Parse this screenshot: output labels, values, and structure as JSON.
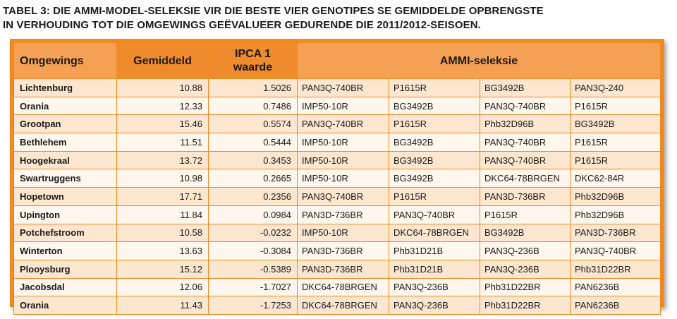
{
  "caption": {
    "line1": "TABEL  3:  DIE AMMI-MODEL-SELEKSIE VIR DIE BESTE VIER GENOTIPES SE GEMIDDELDE OPBRENGSTE",
    "line2": "IN VERHOUDING TOT DIE OMGEWINGS GEËVALUEER GEDURENDE DIE 2011/2012-SEISOEN."
  },
  "table": {
    "headers": {
      "omgewings": "Omgewings",
      "gemiddeld": "Gemiddeld",
      "ipca_line1": "IPCA 1",
      "ipca_line2": "waarde",
      "ammi": "AMMI-seleksie"
    },
    "rows": [
      {
        "loc": "Lichtenburg",
        "mean": "10.88",
        "ipca": "1.5026",
        "g1": "PAN3Q-740BR",
        "g2": "P1615R",
        "g3": "BG3492B",
        "g4": "PAN3Q-240"
      },
      {
        "loc": "Orania",
        "mean": "12.33",
        "ipca": "0.7486",
        "g1": "IMP50-10R",
        "g2": "BG3492B",
        "g3": "PAN3Q-740BR",
        "g4": "P1615R"
      },
      {
        "loc": "Grootpan",
        "mean": "15.46",
        "ipca": "0.5574",
        "g1": "PAN3Q-740BR",
        "g2": "P1615R",
        "g3": "Phb32D96B",
        "g4": "BG3492B"
      },
      {
        "loc": "Bethlehem",
        "mean": "11.51",
        "ipca": "0.5444",
        "g1": "IMP50-10R",
        "g2": "BG3492B",
        "g3": "PAN3Q-740BR",
        "g4": "P1615R"
      },
      {
        "loc": "Hoogekraal",
        "mean": "13.72",
        "ipca": "0.3453",
        "g1": "IMP50-10R",
        "g2": "BG3492B",
        "g3": "PAN3Q-740BR",
        "g4": "P1615R"
      },
      {
        "loc": "Swartruggens",
        "mean": "10.98",
        "ipca": "0.2665",
        "g1": "IMP50-10R",
        "g2": "BG3492B",
        "g3": "DKC64-78BRGEN",
        "g4": "DKC62-84R"
      },
      {
        "loc": "Hopetown",
        "mean": "17.71",
        "ipca": "0.2356",
        "g1": "PAN3Q-740BR",
        "g2": "P1615R",
        "g3": "PAN3D-736BR",
        "g4": "Phb32D96B"
      },
      {
        "loc": "Upington",
        "mean": "11.84",
        "ipca": "0.0984",
        "g1": "PAN3D-736BR",
        "g2": "PAN3Q-740BR",
        "g3": "P1615R",
        "g4": "Phb32D96B"
      },
      {
        "loc": "Potchefstroom",
        "mean": "10.58",
        "ipca": "-0.0232",
        "g1": "IMP50-10R",
        "g2": "DKC64-78BRGEN",
        "g3": "BG3492B",
        "g4": "PAN3D-736BR"
      },
      {
        "loc": "Winterton",
        "mean": "13.63",
        "ipca": "-0.3084",
        "g1": "PAN3D-736BR",
        "g2": "Phb31D21B",
        "g3": "PAN3Q-236B",
        "g4": "PAN3Q-740BR"
      },
      {
        "loc": "Plooysburg",
        "mean": "15.12",
        "ipca": "-0.5389",
        "g1": "PAN3D-736BR",
        "g2": "Phb31D21B",
        "g3": "PAN3Q-236B",
        "g4": "Phb31D22BR"
      },
      {
        "loc": "Jacobsdal",
        "mean": "12.06",
        "ipca": "-1.7027",
        "g1": "DKC64-78BRGEN",
        "g2": "PAN3Q-236B",
        "g3": "Phb31D22BR",
        "g4": "PAN6236B"
      },
      {
        "loc": "Orania",
        "mean": "11.43",
        "ipca": "-1.7253",
        "g1": "DKC64-78BRGEN",
        "g2": "PAN3Q-236B",
        "g3": "Phb31D22BR",
        "g4": "PAN6236B"
      }
    ]
  }
}
